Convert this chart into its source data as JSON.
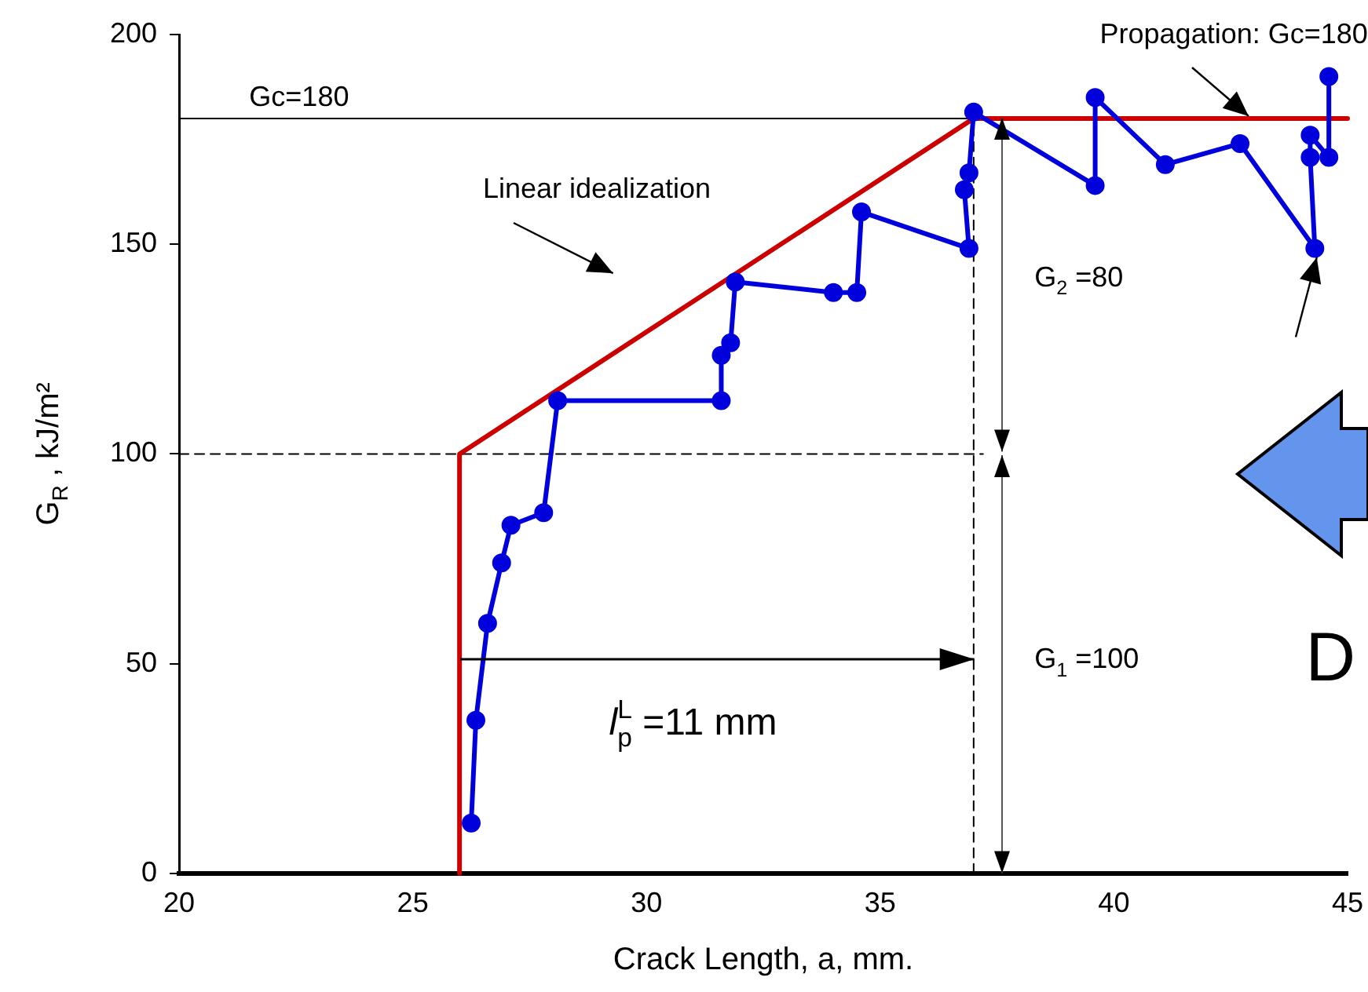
{
  "chart_data": {
    "type": "line",
    "xlabel": "Crack Length, a, mm.",
    "ylabel": "G$_{R}$ , kJ/m²",
    "xlim": [
      20,
      45
    ],
    "xticks": [
      20,
      25,
      30,
      35,
      40,
      45
    ],
    "ylim": [
      0,
      200
    ],
    "yticks": [
      0,
      50,
      100,
      150,
      200
    ],
    "grid": false,
    "legend": false,
    "series": [
      {
        "color": "#0000dd",
        "marker": "circle",
        "line_style": "solid",
        "x": [
          26.25,
          26.35,
          26.6,
          26.9,
          27.1,
          27.8,
          28.1,
          31.6,
          31.6,
          31.8,
          31.9,
          34.0,
          34.5,
          34.6,
          36.9,
          36.8,
          36.9,
          37.0,
          39.6,
          39.6,
          41.1,
          42.7,
          44.3,
          44.2,
          44.2,
          44.6,
          44.6
        ],
        "values": [
          12,
          36.5,
          59.6,
          74,
          83,
          86,
          112.7,
          112.7,
          123.5,
          126.5,
          141,
          138.5,
          138.5,
          157.7,
          149,
          163,
          167,
          181.5,
          164,
          185,
          169,
          174,
          149,
          170.7,
          176,
          170.7,
          190
        ]
      },
      {
        "color": "#cc0000",
        "marker": "none",
        "line_style": "solid",
        "x": [
          26,
          26,
          37,
          45
        ],
        "values": [
          0,
          100,
          180,
          180
        ]
      },
      {
        "color": "#000000",
        "marker": "none",
        "line_style": "solid",
        "x": [
          20,
          37
        ],
        "values": [
          180,
          180
        ]
      },
      {
        "color": "#000000",
        "marker": "none",
        "line_style": "dashed",
        "x": [
          20,
          37.2
        ],
        "values": [
          100,
          100
        ]
      },
      {
        "color": "#000000",
        "marker": "none",
        "line_style": "dashed",
        "x": [
          37,
          37
        ],
        "values": [
          0,
          180
        ]
      }
    ],
    "annotations": [
      "Gc=180",
      "Linear idealization",
      {
        "text": "Propagation: Gc=180",
        "x": 42.9,
        "y": 180
      },
      "G$_{2}$ =80",
      "G$_{1}$ =100",
      "l$_{p}$$^{L}$ =11 mm",
      "D"
    ]
  }
}
